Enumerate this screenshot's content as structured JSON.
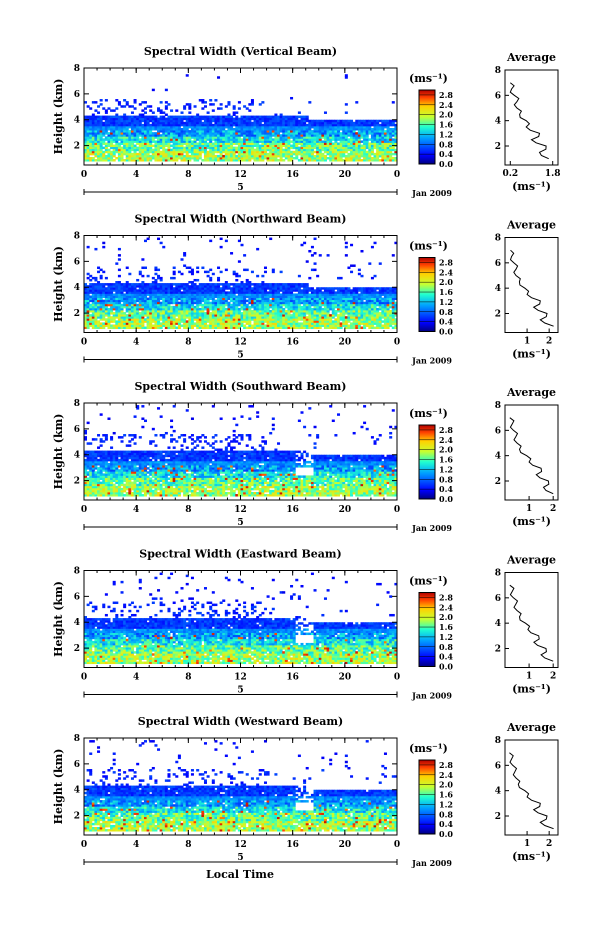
{
  "figure": {
    "xlabel": "Local Time",
    "date_label": "Jan 2009",
    "day_label": "5",
    "height_label": "Height (km)",
    "units": "(ms⁻¹)",
    "avg_title": "Average",
    "colorbar_ticks": [
      "0.0",
      "0.4",
      "0.8",
      "1.2",
      "1.6",
      "2.0",
      "2.4",
      "2.8"
    ]
  },
  "chart_data": [
    {
      "type": "heatmap",
      "title": "Spectral Width (Vertical Beam)",
      "ylabel": "Height (km)",
      "x_ticks": [
        "0",
        "4",
        "8",
        "12",
        "16",
        "20",
        "0"
      ],
      "y_ticks": [
        "2",
        "4",
        "6",
        "8"
      ],
      "xlim": [
        0,
        24
      ],
      "ylim": [
        0.5,
        8
      ],
      "colorbar": {
        "label": "(ms⁻¹)",
        "range": [
          0,
          3
        ],
        "ticks": [
          "0.0",
          "0.4",
          "0.8",
          "1.2",
          "1.6",
          "2.0",
          "2.4",
          "2.8"
        ]
      },
      "profile": {
        "title": "Average",
        "xlabel": "(ms⁻¹)",
        "x_ticks": [
          "0.2",
          "1.8"
        ],
        "xlim": [
          0,
          2
        ],
        "heights": [
          1.0,
          1.5,
          2.0,
          2.5,
          3.0,
          3.5,
          4.0,
          4.5,
          5.0,
          5.5,
          6.0,
          6.5,
          7.0
        ],
        "values": [
          1.65,
          1.3,
          1.55,
          1.0,
          1.3,
          0.8,
          0.8,
          0.55,
          0.45,
          0.45,
          0.35,
          0.25,
          0.2
        ]
      }
    },
    {
      "type": "heatmap",
      "title": "Spectral Width (Northward Beam)",
      "ylabel": "Height (km)",
      "x_ticks": [
        "0",
        "4",
        "8",
        "12",
        "16",
        "20",
        "0"
      ],
      "y_ticks": [
        "2",
        "4",
        "6",
        "8"
      ],
      "xlim": [
        0,
        24
      ],
      "ylim": [
        0.5,
        8
      ],
      "colorbar": {
        "label": "(ms⁻¹)",
        "range": [
          0,
          3
        ],
        "ticks": [
          "0.0",
          "0.4",
          "0.8",
          "1.2",
          "1.6",
          "2.0",
          "2.4",
          "2.8"
        ]
      },
      "profile": {
        "title": "Average",
        "xlabel": "(ms⁻¹)",
        "x_ticks": [
          "1",
          "2"
        ],
        "xlim": [
          0,
          2.4
        ],
        "heights": [
          1.0,
          1.5,
          2.0,
          2.5,
          3.0,
          3.5,
          4.0,
          4.5,
          5.0,
          5.5,
          6.0,
          6.5,
          7.0
        ],
        "values": [
          2.2,
          1.6,
          1.9,
          1.3,
          1.6,
          1.0,
          0.9,
          0.65,
          0.5,
          0.5,
          0.4,
          0.3,
          0.25
        ]
      }
    },
    {
      "type": "heatmap",
      "title": "Spectral Width (Southward Beam)",
      "ylabel": "Height (km)",
      "x_ticks": [
        "0",
        "4",
        "8",
        "12",
        "16",
        "20",
        "0"
      ],
      "y_ticks": [
        "2",
        "4",
        "6",
        "8"
      ],
      "xlim": [
        0,
        24
      ],
      "ylim": [
        0.5,
        8
      ],
      "colorbar": {
        "label": "(ms⁻¹)",
        "range": [
          0,
          3
        ],
        "ticks": [
          "0.0",
          "0.4",
          "0.8",
          "1.2",
          "1.6",
          "2.0",
          "2.4",
          "2.8"
        ]
      },
      "profile": {
        "title": "Average",
        "xlabel": "(ms⁻¹)",
        "x_ticks": [
          "1",
          "2"
        ],
        "xlim": [
          0,
          2.2
        ],
        "heights": [
          1.0,
          1.5,
          2.0,
          2.5,
          3.0,
          3.5,
          4.0,
          4.5,
          5.0,
          5.5,
          6.0,
          6.5,
          7.0
        ],
        "values": [
          2.0,
          1.6,
          1.8,
          1.3,
          1.5,
          1.0,
          0.9,
          0.6,
          0.5,
          0.45,
          0.35,
          0.3,
          0.2
        ]
      }
    },
    {
      "type": "heatmap",
      "title": "Spectral Width (Eastward Beam)",
      "ylabel": "Height (km)",
      "x_ticks": [
        "0",
        "4",
        "8",
        "12",
        "16",
        "20",
        "0"
      ],
      "y_ticks": [
        "2",
        "4",
        "6",
        "8"
      ],
      "xlim": [
        0,
        24
      ],
      "ylim": [
        0.5,
        8
      ],
      "colorbar": {
        "label": "(ms⁻¹)",
        "range": [
          0,
          3
        ],
        "ticks": [
          "0.0",
          "0.4",
          "0.8",
          "1.2",
          "1.6",
          "2.0",
          "2.4",
          "2.8"
        ]
      },
      "profile": {
        "title": "Average",
        "xlabel": "(ms⁻¹)",
        "x_ticks": [
          "1",
          "2"
        ],
        "xlim": [
          0,
          2.2
        ],
        "heights": [
          1.0,
          1.5,
          2.0,
          2.5,
          3.0,
          3.5,
          4.0,
          4.5,
          5.0,
          5.5,
          6.0,
          6.5,
          7.0
        ],
        "values": [
          2.0,
          1.5,
          1.7,
          1.2,
          1.4,
          0.95,
          0.85,
          0.6,
          0.5,
          0.45,
          0.35,
          0.3,
          0.2
        ]
      }
    },
    {
      "type": "heatmap",
      "title": "Spectral Width (Westward Beam)",
      "ylabel": "Height (km)",
      "x_ticks": [
        "0",
        "4",
        "8",
        "12",
        "16",
        "20",
        "0"
      ],
      "y_ticks": [
        "2",
        "4",
        "6",
        "8"
      ],
      "xlim": [
        0,
        24
      ],
      "ylim": [
        0.5,
        8
      ],
      "colorbar": {
        "label": "(ms⁻¹)",
        "range": [
          0,
          3
        ],
        "ticks": [
          "0.0",
          "0.4",
          "0.8",
          "1.2",
          "1.6",
          "2.0",
          "2.4",
          "2.8"
        ]
      },
      "profile": {
        "title": "Average",
        "xlabel": "(ms⁻¹)",
        "x_ticks": [
          "1",
          "2"
        ],
        "xlim": [
          0,
          2.4
        ],
        "heights": [
          1.0,
          1.5,
          2.0,
          2.5,
          3.0,
          3.5,
          4.0,
          4.5,
          5.0,
          5.5,
          6.0,
          6.5,
          7.0
        ],
        "values": [
          2.2,
          1.6,
          1.9,
          1.3,
          1.6,
          1.0,
          0.9,
          0.6,
          0.5,
          0.45,
          0.35,
          0.3,
          0.2
        ]
      }
    }
  ]
}
